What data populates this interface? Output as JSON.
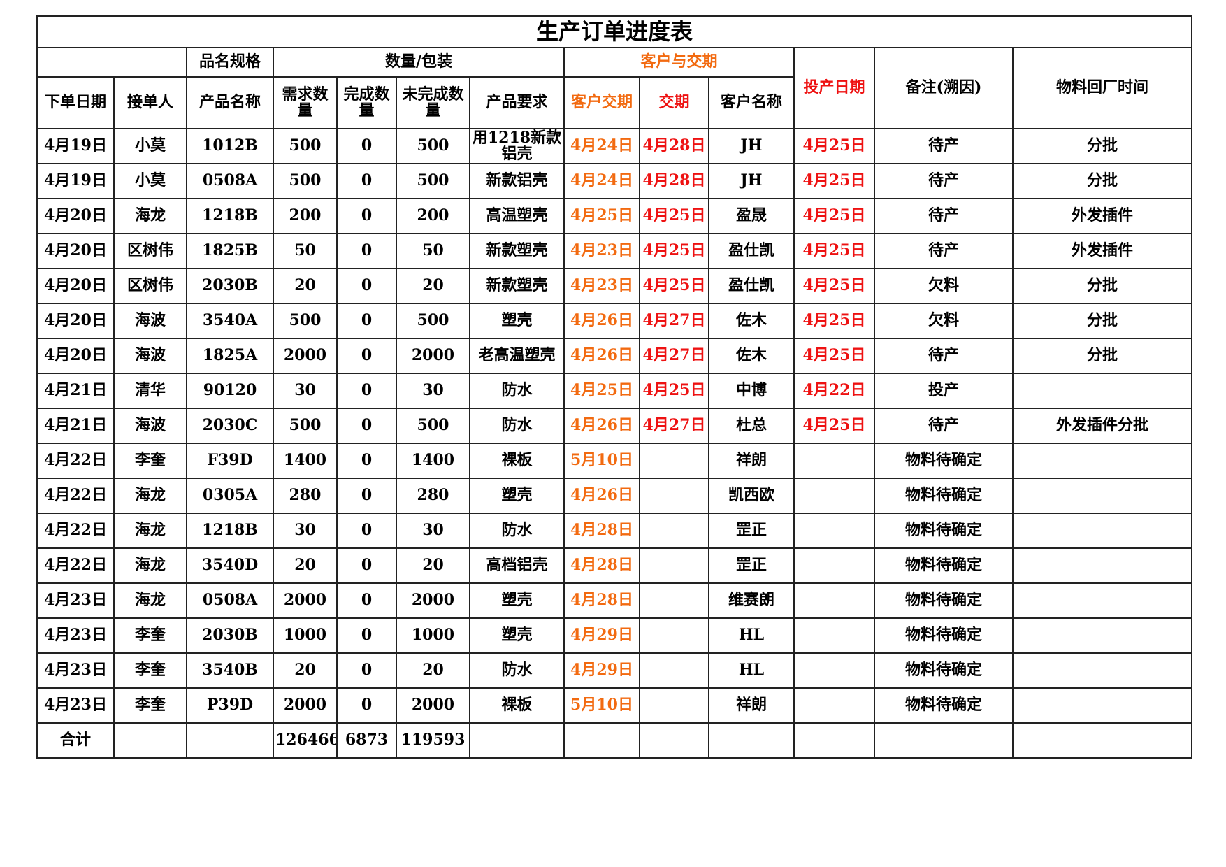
{
  "title": "生产订单进度表",
  "header_groups": [
    "品名规格",
    "数量/包装",
    "客户与交期"
  ],
  "headers": [
    "下单日期",
    "接单人",
    "产品名称",
    "需求数量",
    "完成数量",
    "未完成数量",
    "产品要求",
    "客户交期",
    "交期",
    "客户名称",
    "投产日期",
    "备注(溯因)",
    "物料回厂时间"
  ],
  "rows": [
    [
      "4月19日",
      "小莫",
      "1012B",
      500,
      0,
      500,
      "用1218新款铝壳",
      "4月24日",
      "4月28日",
      "JH",
      "4月25日",
      "待产",
      "分批"
    ],
    [
      "4月19日",
      "小莫",
      "0508A",
      500,
      0,
      500,
      "新款铝壳",
      "4月24日",
      "4月28日",
      "JH",
      "4月25日",
      "待产",
      "分批"
    ],
    [
      "4月20日",
      "海龙",
      "1218B",
      200,
      0,
      200,
      "高温塑壳",
      "4月25日",
      "4月25日",
      "盈晟",
      "4月25日",
      "待产",
      "外发插件"
    ],
    [
      "4月20日",
      "区树伟",
      "1825B",
      50,
      0,
      50,
      "新款塑壳",
      "4月23日",
      "4月25日",
      "盈仕凯",
      "4月25日",
      "待产",
      "外发插件"
    ],
    [
      "4月20日",
      "区树伟",
      "2030B",
      20,
      0,
      20,
      "新款塑壳",
      "4月23日",
      "4月25日",
      "盈仕凯",
      "4月25日",
      "欠料",
      "分批"
    ],
    [
      "4月20日",
      "海波",
      "3540A",
      500,
      0,
      500,
      "塑壳",
      "4月26日",
      "4月27日",
      "佐木",
      "4月25日",
      "欠料",
      "分批"
    ],
    [
      "4月20日",
      "海波",
      "1825A",
      2000,
      0,
      2000,
      "老高温塑壳",
      "4月26日",
      "4月27日",
      "佐木",
      "4月25日",
      "待产",
      "分批"
    ],
    [
      "4月21日",
      "清华",
      "90120",
      30,
      0,
      30,
      "防水",
      "4月25日",
      "4月25日",
      "中博",
      "4月22日",
      "投产",
      null
    ],
    [
      "4月21日",
      "海波",
      "2030C",
      500,
      0,
      500,
      "防水",
      "4月26日",
      "4月27日",
      "杜总",
      "4月25日",
      "待产",
      "外发插件分批"
    ],
    [
      "4月22日",
      "李奎",
      "F39D",
      1400,
      0,
      1400,
      "裸板",
      "5月10日",
      null,
      "祥朗",
      null,
      "物料待确定",
      null
    ],
    [
      "4月22日",
      "海龙",
      "0305A",
      280,
      0,
      280,
      "塑壳",
      "4月26日",
      null,
      "凯西欧",
      null,
      "物料待确定",
      null
    ],
    [
      "4月22日",
      "海龙",
      "1218B",
      30,
      0,
      30,
      "防水",
      "4月28日",
      null,
      "罡正",
      null,
      "物料待确定",
      null
    ],
    [
      "4月22日",
      "海龙",
      "3540D",
      20,
      0,
      20,
      "高档铝壳",
      "4月28日",
      null,
      "罡正",
      null,
      "物料待确定",
      null
    ],
    [
      "4月23日",
      "海龙",
      "0508A",
      2000,
      0,
      2000,
      "塑壳",
      "4月28日",
      null,
      "维赛朗",
      null,
      "物料待确定",
      null
    ],
    [
      "4月23日",
      "李奎",
      "2030B",
      1000,
      0,
      1000,
      "塑壳",
      "4月29日",
      null,
      "HL",
      null,
      "物料待确定",
      null
    ],
    [
      "4月23日",
      "李奎",
      "3540B",
      20,
      0,
      20,
      "防水",
      "4月29日",
      null,
      "HL",
      null,
      "物料待确定",
      null
    ],
    [
      "4月23日",
      "李奎",
      "P39D",
      2000,
      0,
      2000,
      "裸板",
      "5月10日",
      null,
      "祥朗",
      null,
      "物料待确定",
      null
    ]
  ],
  "total": [
    "合计",
    null,
    null,
    126466,
    6873,
    119593,
    null,
    null,
    null,
    null,
    null,
    null,
    null
  ]
}
